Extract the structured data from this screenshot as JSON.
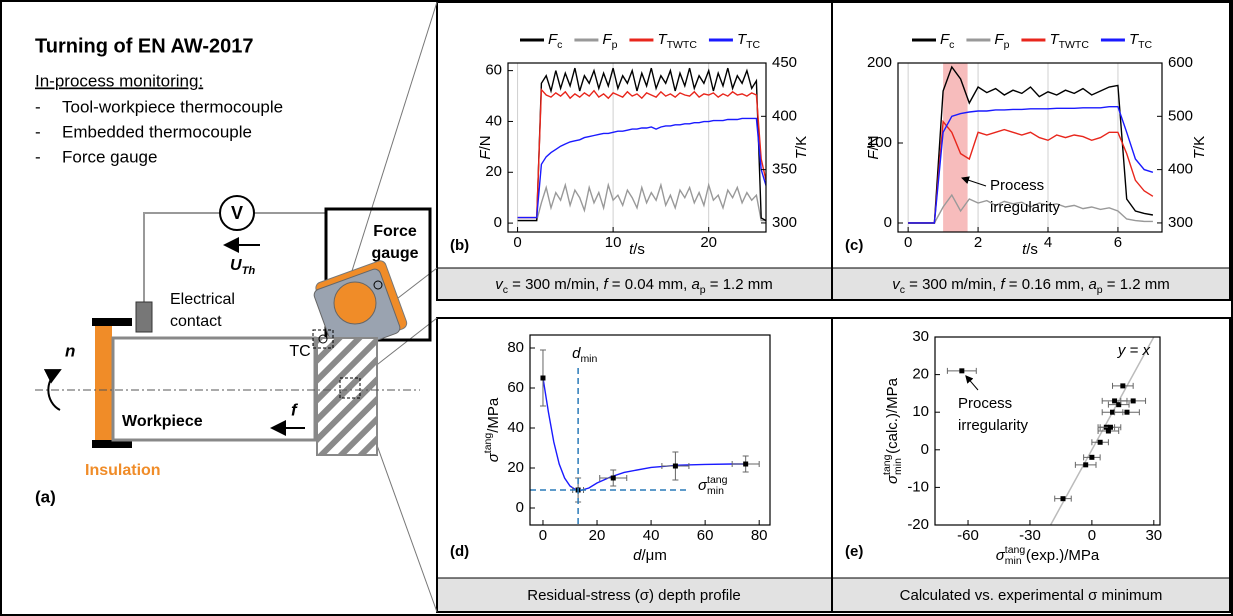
{
  "diagram": {
    "title": "Turning of EN AW-2017",
    "subtitle": "In-process monitoring:",
    "items": [
      "Tool-workpiece thermocouple",
      "Embedded thermocouple",
      "Force gauge"
    ],
    "bullet": "-",
    "voltmeter": "V",
    "voltage": [
      "U",
      {
        "sub": "Th"
      }
    ],
    "force_gauge": [
      "Force",
      "gauge"
    ],
    "electrical_contact": [
      "Electrical",
      "contact"
    ],
    "tc": "TC",
    "rotation": "n",
    "feed": "f",
    "workpiece": "Workpiece",
    "insulation": "Insulation",
    "label": "(a)"
  },
  "chart_data": [
    {
      "type": "line",
      "label": "(b)",
      "grid": "x",
      "caption": [
        "v",
        {
          "sub": "c"
        },
        " = 300 m/min, ",
        "f",
        " = 0.04 mm, ",
        "a",
        {
          "sub": "p"
        },
        " = 1.2 mm"
      ],
      "xlabel": [
        "t",
        "/s"
      ],
      "ylabel": [
        "F",
        "/N"
      ],
      "y2label": [
        "T",
        "/K"
      ],
      "xlim": [
        -1,
        26
      ],
      "ylim": [
        -3.5,
        63
      ],
      "y2lim": [
        291.5,
        450
      ],
      "xticks": [
        0,
        10,
        20
      ],
      "yticks": [
        0,
        20,
        40,
        60
      ],
      "y2ticks": [
        300,
        350,
        400,
        450
      ],
      "x": [
        0,
        0.5,
        1,
        1.5,
        2,
        2.5,
        3,
        3.5,
        4,
        4.5,
        5,
        5.5,
        6,
        6.5,
        7,
        7.5,
        8,
        8.5,
        9,
        9.5,
        10,
        10.5,
        11,
        11.5,
        12,
        12.5,
        13,
        13.5,
        14,
        14.5,
        15,
        15.5,
        16,
        16.5,
        17,
        17.5,
        18,
        18.5,
        19,
        19.5,
        20,
        20.5,
        21,
        21.5,
        22,
        22.5,
        23,
        23.5,
        24,
        24.5,
        25,
        25.5,
        26
      ],
      "series": [
        {
          "name": [
            "F",
            {
              "sub": "c"
            }
          ],
          "color": "#000000",
          "values": [
            1,
            1,
            1,
            1,
            1,
            55,
            58,
            52,
            60,
            53,
            59,
            54,
            61,
            52,
            58,
            55,
            60,
            53,
            59,
            54,
            61,
            53,
            58,
            55,
            60,
            52,
            59,
            54,
            61,
            53,
            58,
            55,
            60,
            52,
            59,
            54,
            61,
            53,
            58,
            55,
            60,
            52,
            59,
            54,
            61,
            53,
            58,
            55,
            60,
            53,
            56,
            2,
            1
          ]
        },
        {
          "name": [
            "F",
            {
              "sub": "p"
            }
          ],
          "color": "#999999",
          "values": [
            1,
            1,
            1,
            1,
            1,
            8,
            14,
            6,
            12,
            9,
            15,
            7,
            13,
            10,
            5,
            14,
            8,
            12,
            6,
            15,
            9,
            11,
            7,
            13,
            10,
            6,
            14,
            8,
            12,
            9,
            15,
            7,
            11,
            6,
            13,
            10,
            14,
            8,
            12,
            7,
            15,
            9,
            11,
            6,
            13,
            10,
            14,
            8,
            12,
            9,
            11,
            1,
            1
          ]
        },
        {
          "name": [
            "T",
            {
              "sub": "TWTC"
            }
          ],
          "color": "#e8261c",
          "axis": "y2",
          "values": [
            305,
            305,
            305,
            305,
            305,
            425,
            420,
            418,
            422,
            419,
            423,
            417,
            421,
            418,
            422,
            419,
            424,
            418,
            421,
            417,
            422,
            420,
            418,
            423,
            419,
            421,
            417,
            422,
            420,
            418,
            423,
            419,
            421,
            418,
            422,
            420,
            419,
            423,
            418,
            421,
            420,
            422,
            418,
            421,
            419,
            423,
            420,
            421,
            419,
            422,
            420,
            360,
            340
          ]
        },
        {
          "name": [
            "T",
            {
              "sub": "TC"
            }
          ],
          "color": "#1a1aff",
          "axis": "y2",
          "values": [
            305,
            305,
            305,
            305,
            305,
            355,
            362,
            366,
            369,
            372,
            374,
            376,
            377,
            378,
            380,
            381,
            382,
            383,
            384,
            384,
            385,
            386,
            386,
            387,
            388,
            388,
            389,
            389,
            390,
            388,
            390,
            391,
            391,
            392,
            392,
            393,
            393,
            394,
            394,
            395,
            395,
            396,
            396,
            396,
            397,
            397,
            397,
            398,
            398,
            398,
            398,
            350,
            335
          ]
        }
      ]
    },
    {
      "type": "line",
      "label": "(c)",
      "grid": "x",
      "caption": [
        "v",
        {
          "sub": "c"
        },
        " = 300 m/min, ",
        "f",
        " = 0.16 mm, ",
        "a",
        {
          "sub": "p"
        },
        " = 1.2 mm"
      ],
      "xlabel": [
        "t",
        "/s"
      ],
      "ylabel": [
        "F",
        "/N"
      ],
      "y2label": [
        "T",
        "/K"
      ],
      "xlim": [
        -0.29,
        7.26
      ],
      "ylim": [
        -11.25,
        200
      ],
      "y2lim": [
        283,
        600
      ],
      "xticks": [
        0,
        2,
        4,
        6
      ],
      "yticks": [
        0,
        100,
        200
      ],
      "y2ticks": [
        300,
        400,
        500,
        600
      ],
      "highlight": [
        1,
        1.7
      ],
      "annotation": [
        "Process",
        "irregularity"
      ],
      "x": [
        0,
        0.25,
        0.5,
        0.75,
        1,
        1.25,
        1.5,
        1.75,
        2,
        2.25,
        2.5,
        2.75,
        3,
        3.25,
        3.5,
        3.75,
        4,
        4.25,
        4.5,
        4.75,
        5,
        5.25,
        5.5,
        5.75,
        6,
        6.25,
        6.5,
        6.75,
        7
      ],
      "series": [
        {
          "name": [
            "F",
            {
              "sub": "c"
            }
          ],
          "color": "#000000",
          "values": [
            0,
            0,
            0,
            0,
            165,
            195,
            180,
            150,
            170,
            163,
            168,
            160,
            166,
            162,
            170,
            158,
            164,
            160,
            166,
            162,
            168,
            160,
            165,
            170,
            172,
            30,
            15,
            12,
            10
          ]
        },
        {
          "name": [
            "F",
            {
              "sub": "p"
            }
          ],
          "color": "#999999",
          "values": [
            0,
            0,
            0,
            0,
            20,
            35,
            15,
            30,
            25,
            28,
            22,
            27,
            24,
            26,
            20,
            25,
            22,
            24,
            20,
            22,
            18,
            20,
            17,
            19,
            15,
            5,
            3,
            2,
            2
          ]
        },
        {
          "name": [
            "T",
            {
              "sub": "TWTC"
            }
          ],
          "color": "#e8261c",
          "axis": "y2",
          "values": [
            300,
            300,
            300,
            300,
            490,
            470,
            430,
            420,
            470,
            465,
            470,
            475,
            470,
            465,
            470,
            460,
            455,
            465,
            460,
            465,
            462,
            455,
            460,
            470,
            470,
            430,
            380,
            360,
            350
          ]
        },
        {
          "name": [
            "T",
            {
              "sub": "TC"
            }
          ],
          "color": "#1a1aff",
          "axis": "y2",
          "values": [
            300,
            300,
            300,
            300,
            470,
            500,
            505,
            508,
            510,
            510,
            512,
            512,
            513,
            513,
            514,
            514,
            514,
            515,
            515,
            515,
            516,
            516,
            516,
            518,
            518,
            470,
            420,
            400,
            395
          ]
        }
      ]
    },
    {
      "type": "scatter",
      "label": "(d)",
      "caption": "Residual-stress (σ) depth profile",
      "xlabel": [
        "d",
        "/μm"
      ],
      "ylabel": [
        "σ",
        {
          "sup": "tang"
        },
        "/MPa"
      ],
      "xlim": [
        -4.8,
        84
      ],
      "ylim": [
        -8.5,
        86.5
      ],
      "xticks": [
        0,
        20,
        40,
        60,
        80
      ],
      "yticks": [
        0,
        20,
        40,
        60,
        80
      ],
      "vline": {
        "value": 13,
        "label": [
          "d",
          {
            "sub": "min"
          }
        ]
      },
      "hline": {
        "value": 9,
        "label": [
          "σ",
          {
            "sup": "tang",
            "sub": "min"
          }
        ]
      },
      "series": [
        {
          "color": "#1a1aff",
          "line": true,
          "x": [
            0,
            2,
            4,
            6,
            8,
            10,
            12,
            14,
            17,
            20,
            25,
            30,
            40,
            50,
            60,
            70,
            75
          ],
          "values": [
            65,
            48,
            33,
            22,
            15,
            11,
            9.2,
            8.8,
            10,
            12.5,
            15.5,
            17.8,
            20.3,
            21.4,
            21.8,
            22,
            22
          ]
        },
        {
          "color": "#000000",
          "x": [
            0,
            13,
            26,
            49,
            75
          ],
          "values": [
            65,
            9,
            15,
            21,
            22
          ],
          "xerr": [
            0,
            2,
            5,
            5,
            5
          ],
          "yerr": [
            14,
            6,
            4,
            7,
            4
          ]
        }
      ]
    },
    {
      "type": "scatter",
      "label": "(e)",
      "caption": "Calculated vs. experimental σ minimum",
      "xlabel": [
        "σ",
        {
          "sup": "tang",
          "sub": "min"
        },
        " (exp.)/MPa"
      ],
      "ylabel": [
        "σ",
        {
          "sup": "tang",
          "sub": "min"
        },
        " (calc.)/MPa"
      ],
      "xlim": [
        -76,
        33
      ],
      "ylim": [
        -20,
        30
      ],
      "xticks": [
        -60,
        -30,
        0,
        30
      ],
      "yticks": [
        -20,
        -10,
        0,
        10,
        20,
        30
      ],
      "identity": "y = x",
      "annotation": [
        "Process",
        "irregularity"
      ],
      "series": [
        {
          "color": "#000000",
          "x": [
            -63,
            -14,
            -3,
            0,
            4,
            7,
            8,
            9,
            10,
            11,
            13,
            15,
            17,
            20
          ],
          "values": [
            21,
            -13,
            -4,
            -2,
            2,
            6,
            5,
            6,
            10,
            13,
            12,
            17,
            10,
            13
          ],
          "xerr": [
            7,
            4,
            5,
            4,
            4,
            4,
            5,
            5,
            5,
            6,
            5,
            5,
            6,
            6
          ]
        }
      ]
    }
  ]
}
